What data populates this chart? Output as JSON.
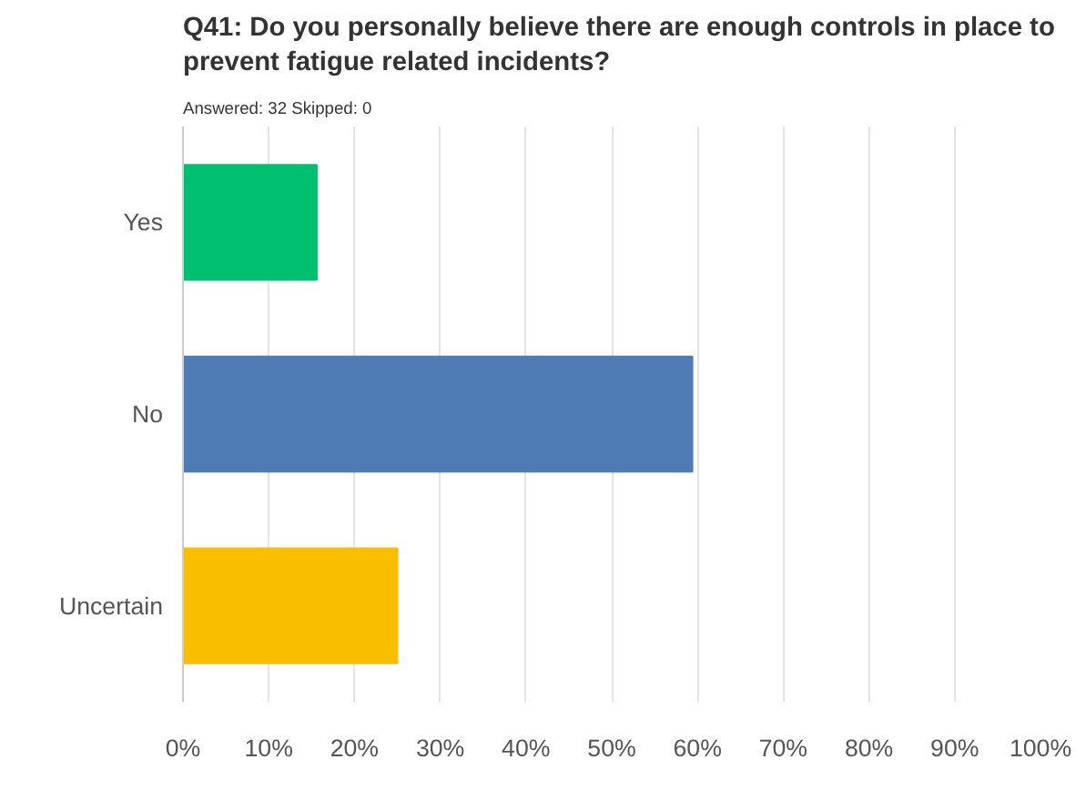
{
  "chart_data": {
    "type": "bar",
    "orientation": "horizontal",
    "title": "Q41: Do you personally believe there are enough controls in place to prevent fatigue related incidents?",
    "subtitle": "Answered: 32    Skipped: 0",
    "categories": [
      "Yes",
      "No",
      "Uncertain"
    ],
    "values": [
      15.6,
      59.4,
      25
    ],
    "colors": [
      "#00bf6f",
      "#507cb6",
      "#f9be00"
    ],
    "xlim": [
      0,
      100
    ],
    "xticks": [
      {
        "value": 0,
        "label": "0%"
      },
      {
        "value": 10,
        "label": "10%"
      },
      {
        "value": 20,
        "label": "20%"
      },
      {
        "value": 30,
        "label": "30%"
      },
      {
        "value": 40,
        "label": "40%"
      },
      {
        "value": 50,
        "label": "50%"
      },
      {
        "value": 60,
        "label": "60%"
      },
      {
        "value": 70,
        "label": "70%"
      },
      {
        "value": 80,
        "label": "80%"
      },
      {
        "value": 90,
        "label": "90%"
      },
      {
        "value": 100,
        "label": "100%"
      }
    ],
    "grid": "x"
  }
}
